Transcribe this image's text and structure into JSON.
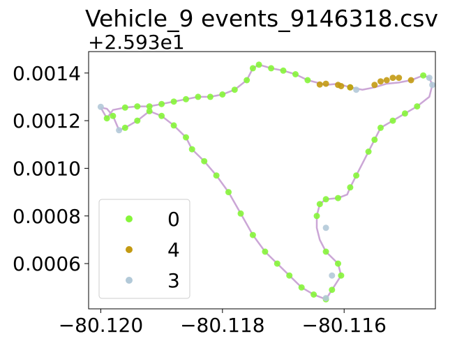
{
  "chart_data": {
    "type": "scatter",
    "title": "Vehicle_9 events_9146318.csv",
    "xlabel": "",
    "ylabel": "",
    "y_offset_label": "+2.593e1",
    "xlim": [
      -80.1202,
      -80.1145
    ],
    "ylim": [
      0.00041,
      0.00149
    ],
    "x_ticks": [
      {
        "value": -80.12,
        "label": "−80.120"
      },
      {
        "value": -80.118,
        "label": "−80.118"
      },
      {
        "value": -80.116,
        "label": "−80.116"
      }
    ],
    "y_ticks": [
      {
        "value": 0.0006,
        "label": "0.0006"
      },
      {
        "value": 0.0008,
        "label": "0.0008"
      },
      {
        "value": 0.001,
        "label": "0.0010"
      },
      {
        "value": 0.0012,
        "label": "0.0012"
      },
      {
        "value": 0.0014,
        "label": "0.0014"
      }
    ],
    "grid": false,
    "legend_position": "lower-left",
    "route_line_color": "#cba6d6",
    "track": [
      [
        -80.12,
        0.001255
      ],
      [
        -80.1199,
        0.00121
      ],
      [
        -80.1198,
        0.001245
      ],
      [
        -80.1196,
        0.001255
      ],
      [
        -80.1194,
        0.00126
      ],
      [
        -80.1192,
        0.00126
      ],
      [
        -80.119,
        0.00127
      ],
      [
        -80.1188,
        0.00128
      ],
      [
        -80.1186,
        0.00129
      ],
      [
        -80.1184,
        0.0013
      ],
      [
        -80.1182,
        0.0013
      ],
      [
        -80.118,
        0.00131
      ],
      [
        -80.1178,
        0.00133
      ],
      [
        -80.1176,
        0.00137
      ],
      [
        -80.1175,
        0.00142
      ],
      [
        -80.1174,
        0.001435
      ],
      [
        -80.1172,
        0.00142
      ],
      [
        -80.117,
        0.00141
      ],
      [
        -80.1168,
        0.001395
      ],
      [
        -80.1166,
        0.00137
      ],
      [
        -80.1163,
        0.00135
      ],
      [
        -80.1161,
        0.001355
      ],
      [
        -80.1159,
        0.00134
      ],
      [
        -80.1157,
        0.00133
      ],
      [
        -80.1155,
        0.00134
      ],
      [
        -80.1153,
        0.001355
      ],
      [
        -80.1151,
        0.00136
      ],
      [
        -80.1149,
        0.00137
      ],
      [
        -80.1147,
        0.00139
      ],
      [
        -80.1146,
        0.00138
      ],
      [
        -80.11455,
        0.00135
      ],
      [
        -80.1146,
        0.0013
      ],
      [
        -80.1148,
        0.00126
      ],
      [
        -80.115,
        0.00123
      ],
      [
        -80.1152,
        0.0012
      ],
      [
        -80.1154,
        0.00117
      ],
      [
        -80.1155,
        0.00112
      ],
      [
        -80.1156,
        0.00107
      ],
      [
        -80.1157,
        0.00102
      ],
      [
        -80.1158,
        0.00097
      ],
      [
        -80.1159,
        0.00092
      ],
      [
        -80.11595,
        0.00089
      ],
      [
        -80.1161,
        0.000875
      ],
      [
        -80.1163,
        0.00087
      ],
      [
        -80.1164,
        0.00085
      ],
      [
        -80.11645,
        0.0008
      ],
      [
        -80.11645,
        0.00075
      ],
      [
        -80.1164,
        0.0007
      ],
      [
        -80.1163,
        0.00065
      ],
      [
        -80.1161,
        0.0006
      ],
      [
        -80.11605,
        0.00055
      ],
      [
        -80.1162,
        0.00049
      ],
      [
        -80.1163,
        0.00045
      ],
      [
        -80.1165,
        0.00047
      ],
      [
        -80.1167,
        0.0005
      ],
      [
        -80.1169,
        0.00055
      ],
      [
        -80.1171,
        0.0006
      ],
      [
        -80.1173,
        0.00065
      ],
      [
        -80.1175,
        0.00072
      ],
      [
        -80.1177,
        0.00081
      ],
      [
        -80.1179,
        0.0009
      ],
      [
        -80.1181,
        0.00097
      ],
      [
        -80.1183,
        0.00103
      ],
      [
        -80.1185,
        0.00108
      ],
      [
        -80.1186,
        0.00113
      ],
      [
        -80.1188,
        0.00118
      ],
      [
        -80.119,
        0.00122
      ],
      [
        -80.1192,
        0.00124
      ],
      [
        -80.1194,
        0.0012
      ],
      [
        -80.1196,
        0.00117
      ],
      [
        -80.1197,
        0.00116
      ],
      [
        -80.1198,
        0.00122
      ],
      [
        -80.1199,
        0.00125
      ],
      [
        -80.12,
        0.001255
      ]
    ],
    "series": [
      {
        "name": "0",
        "color": "#86f53a",
        "points": [
          [
            -80.1199,
            0.00121
          ],
          [
            -80.1196,
            0.001255
          ],
          [
            -80.1194,
            0.00126
          ],
          [
            -80.1192,
            0.00126
          ],
          [
            -80.119,
            0.00127
          ],
          [
            -80.1188,
            0.00128
          ],
          [
            -80.1186,
            0.00129
          ],
          [
            -80.1184,
            0.0013
          ],
          [
            -80.1182,
            0.0013
          ],
          [
            -80.118,
            0.00131
          ],
          [
            -80.1178,
            0.00133
          ],
          [
            -80.1176,
            0.00137
          ],
          [
            -80.1175,
            0.00142
          ],
          [
            -80.1174,
            0.001435
          ],
          [
            -80.1172,
            0.00142
          ],
          [
            -80.117,
            0.00141
          ],
          [
            -80.1168,
            0.001395
          ],
          [
            -80.1166,
            0.00137
          ],
          [
            -80.1159,
            0.00134
          ],
          [
            -80.1147,
            0.00139
          ],
          [
            -80.1148,
            0.00126
          ],
          [
            -80.115,
            0.00123
          ],
          [
            -80.1152,
            0.0012
          ],
          [
            -80.1154,
            0.00117
          ],
          [
            -80.1155,
            0.00112
          ],
          [
            -80.1156,
            0.00107
          ],
          [
            -80.1158,
            0.00097
          ],
          [
            -80.1159,
            0.00092
          ],
          [
            -80.1161,
            0.000875
          ],
          [
            -80.1163,
            0.00087
          ],
          [
            -80.1164,
            0.00085
          ],
          [
            -80.11645,
            0.0008
          ],
          [
            -80.1163,
            0.00065
          ],
          [
            -80.1161,
            0.0006
          ],
          [
            -80.11605,
            0.00055
          ],
          [
            -80.1162,
            0.00049
          ],
          [
            -80.1163,
            0.00045
          ],
          [
            -80.1165,
            0.00047
          ],
          [
            -80.1167,
            0.0005
          ],
          [
            -80.1169,
            0.00055
          ],
          [
            -80.1171,
            0.0006
          ],
          [
            -80.1173,
            0.00065
          ],
          [
            -80.1175,
            0.00072
          ],
          [
            -80.1177,
            0.00081
          ],
          [
            -80.1179,
            0.0009
          ],
          [
            -80.1181,
            0.00097
          ],
          [
            -80.1183,
            0.00103
          ],
          [
            -80.1185,
            0.00108
          ],
          [
            -80.1186,
            0.00113
          ],
          [
            -80.1188,
            0.00118
          ],
          [
            -80.119,
            0.00122
          ],
          [
            -80.1192,
            0.00124
          ],
          [
            -80.1194,
            0.0012
          ],
          [
            -80.1196,
            0.00117
          ],
          [
            -80.1198,
            0.00122
          ]
        ]
      },
      {
        "name": "4",
        "color": "#c39a12",
        "points": [
          [
            -80.1164,
            0.001352
          ],
          [
            -80.1163,
            0.001355
          ],
          [
            -80.1161,
            0.00135
          ],
          [
            -80.11605,
            0.001345
          ],
          [
            -80.1159,
            0.00134
          ],
          [
            -80.1155,
            0.00135
          ],
          [
            -80.1154,
            0.001365
          ],
          [
            -80.1153,
            0.00137
          ],
          [
            -80.1152,
            0.00138
          ],
          [
            -80.1151,
            0.00138
          ],
          [
            -80.1149,
            0.00137
          ]
        ]
      },
      {
        "name": "3",
        "color": "#b2c9d8",
        "points": [
          [
            -80.12,
            0.001258
          ],
          [
            -80.1197,
            0.00116
          ],
          [
            -80.1158,
            0.00133
          ],
          [
            -80.1146,
            0.00138
          ],
          [
            -80.11455,
            0.00135
          ],
          [
            -80.1163,
            0.00075
          ],
          [
            -80.1162,
            0.00055
          ],
          [
            -80.1163,
            0.000455
          ]
        ]
      }
    ]
  }
}
